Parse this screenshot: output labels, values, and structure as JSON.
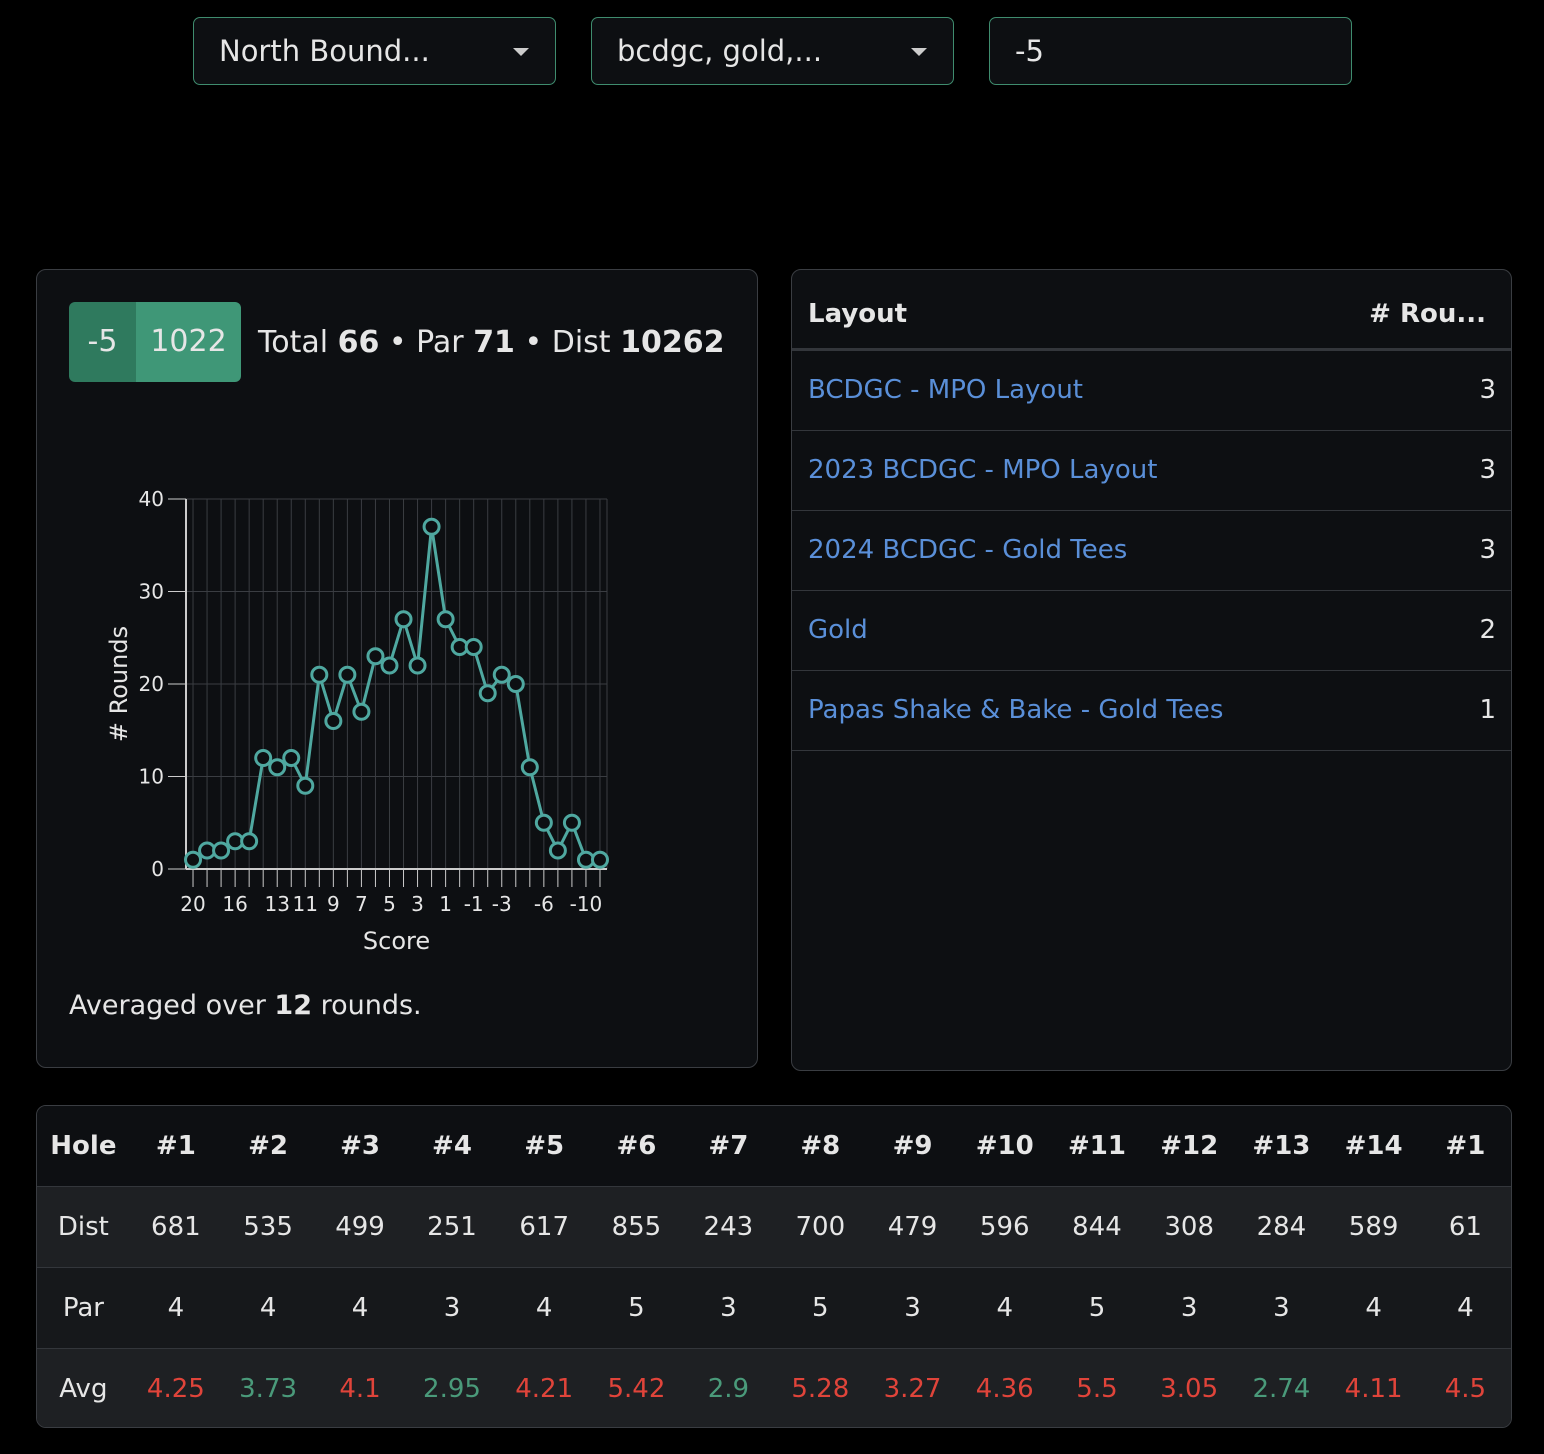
{
  "filters": {
    "course": "North Bound...",
    "layouts": "bcdgc, gold,...",
    "score": "-5"
  },
  "summary": {
    "score": "-5",
    "rating": "1022",
    "total_label": "Total",
    "total": "66",
    "par_label": "Par",
    "par": "71",
    "dist_label": "Dist",
    "dist": "10262",
    "sep": "•",
    "footer_pre": "Averaged over",
    "rounds": "12",
    "footer_post": "rounds."
  },
  "chart_data": {
    "type": "line",
    "xlabel": "Score",
    "ylabel": "# Rounds",
    "color": "#4fa8a0",
    "grid": true,
    "categories": [
      "20",
      null,
      null,
      "16",
      null,
      null,
      "13",
      null,
      "11",
      null,
      "9",
      null,
      "7",
      null,
      "5",
      null,
      "3",
      null,
      "1",
      null,
      "-1",
      null,
      "-3",
      null,
      null,
      "-6",
      null,
      null,
      "-10",
      null
    ],
    "values": [
      1,
      2,
      2,
      3,
      3,
      12,
      11,
      12,
      9,
      21,
      16,
      21,
      17,
      23,
      22,
      27,
      22,
      37,
      27,
      24,
      24,
      19,
      21,
      20,
      11,
      5,
      2,
      5,
      1,
      1
    ],
    "ylim": [
      0,
      40
    ],
    "yticks": [
      0,
      10,
      20,
      30,
      40
    ]
  },
  "layout_table": {
    "headers": [
      "Layout",
      "# Rou..."
    ],
    "rows": [
      [
        "BCDGC - MPO Layout",
        "3"
      ],
      [
        "2023 BCDGC - MPO Layout",
        "3"
      ],
      [
        "2024 BCDGC - Gold Tees",
        "3"
      ],
      [
        "Gold",
        "2"
      ],
      [
        "Papas Shake & Bake - Gold Tees",
        "1"
      ]
    ]
  },
  "hole_table": {
    "headers": [
      "Hole",
      "#1",
      "#2",
      "#3",
      "#4",
      "#5",
      "#6",
      "#7",
      "#8",
      "#9",
      "#10",
      "#11",
      "#12",
      "#13",
      "#14",
      "#1"
    ],
    "rows": [
      [
        "Dist",
        "681",
        "535",
        "499",
        "251",
        "617",
        "855",
        "243",
        "700",
        "479",
        "596",
        "844",
        "308",
        "284",
        "589",
        "61"
      ],
      [
        "Par",
        "4",
        "4",
        "4",
        "3",
        "4",
        "5",
        "3",
        "5",
        "3",
        "4",
        "5",
        "3",
        "3",
        "4",
        "4"
      ],
      [
        "Avg",
        "4.25",
        "3.73",
        "4.1",
        "2.95",
        "4.21",
        "5.42",
        "2.9",
        "5.28",
        "3.27",
        "4.36",
        "5.5",
        "3.05",
        "2.74",
        "4.11",
        "4.5"
      ]
    ]
  }
}
